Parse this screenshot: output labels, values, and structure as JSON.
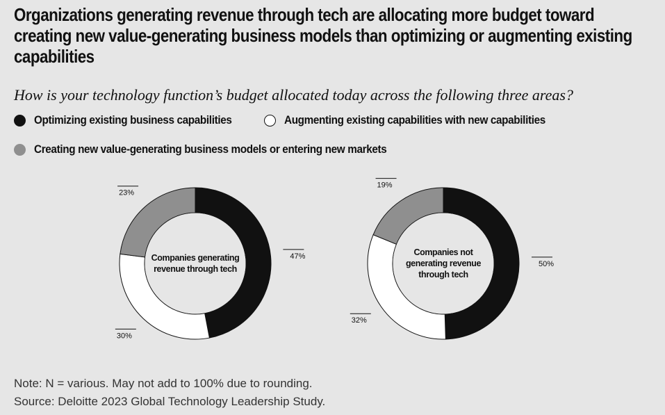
{
  "title": "Organizations generating revenue through tech are allocating more budget toward creating new value-generating business models than optimizing or augmenting existing capabilities",
  "subtitle": "How is your technology function’s budget allocated today across the following three areas?",
  "colors": {
    "optimizing": "#111111",
    "augmenting": "#ffffff",
    "creating": "#8f8f8f",
    "background": "#e6e6e6"
  },
  "legend": [
    {
      "label": "Optimizing existing business capabilities",
      "color": "#111111"
    },
    {
      "label": "Augmenting existing capabilities with new capabilities",
      "color": "#ffffff"
    },
    {
      "label": "Creating new value-generating business models or entering new markets",
      "color": "#8f8f8f"
    }
  ],
  "chart_data": [
    {
      "type": "pie",
      "donut": true,
      "center_label": "Companies generating revenue through tech",
      "categories": [
        "Optimizing existing business capabilities",
        "Augmenting existing capabilities with new capabilities",
        "Creating new value-generating business models or entering new markets"
      ],
      "values": [
        47,
        30,
        23
      ],
      "data_labels": [
        "47%",
        "30%",
        "23%"
      ]
    },
    {
      "type": "pie",
      "donut": true,
      "center_label": "Companies not generating revenue through tech",
      "categories": [
        "Optimizing existing business capabilities",
        "Augmenting existing capabilities with new capabilities",
        "Creating new value-generating business models or entering new markets"
      ],
      "values": [
        50,
        32,
        19
      ],
      "data_labels": [
        "50%",
        "32%",
        "19%"
      ]
    }
  ],
  "notes": {
    "note": "Note: N = various. May not add to 100% due to rounding.",
    "source": "Source: Deloitte 2023 Global Technology Leadership Study."
  }
}
